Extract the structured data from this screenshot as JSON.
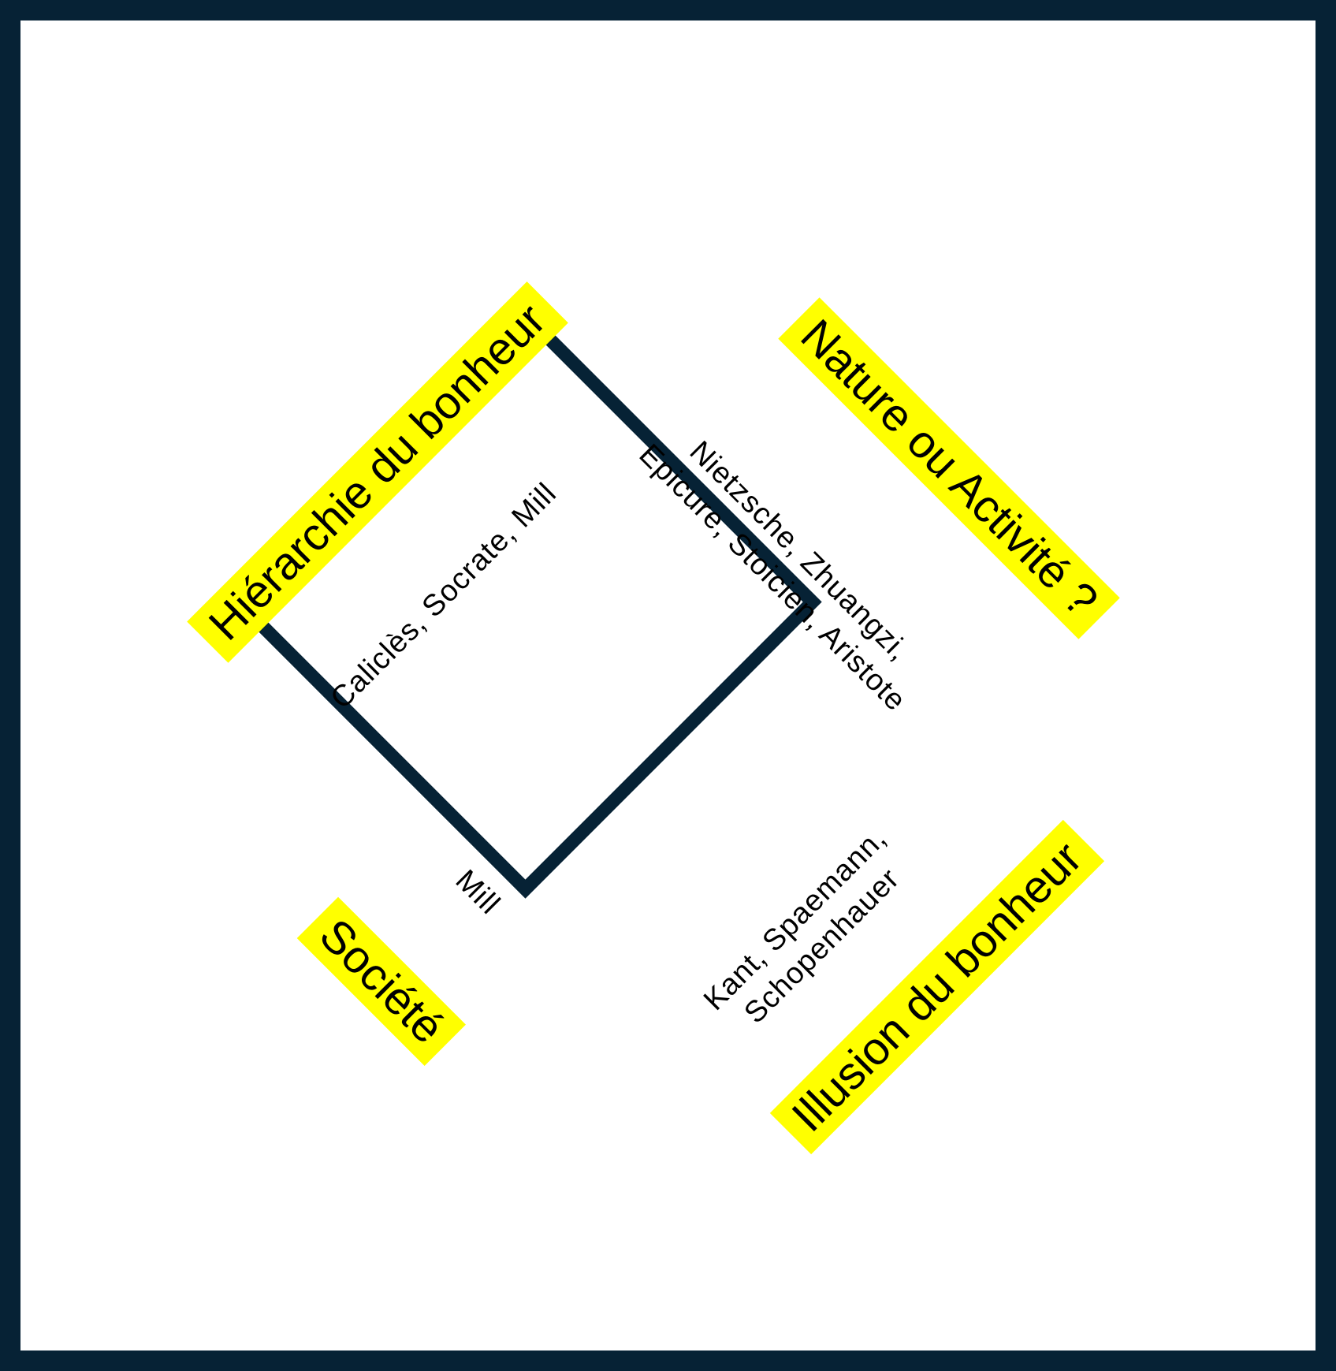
{
  "banners": {
    "hierarchie": "Hiérarchie du bonheur",
    "nature": "Nature ou Activité ?",
    "societe": "Société",
    "illusion": "Illusion du bonheur"
  },
  "notes": {
    "calicles": "Caliclès, Socrate, Mill",
    "nietzsche_line1": "Nietzsche, Zhuangzi,",
    "nietzsche_line2": "Epicure, Stoicien, Aristote",
    "mill": "Mill",
    "kant_line1": "Kant, Spaemann,",
    "kant_line2": "Schopenhauer"
  },
  "colors": {
    "frame": "#062235",
    "banner_background": "#ffff00",
    "text": "#000000"
  }
}
